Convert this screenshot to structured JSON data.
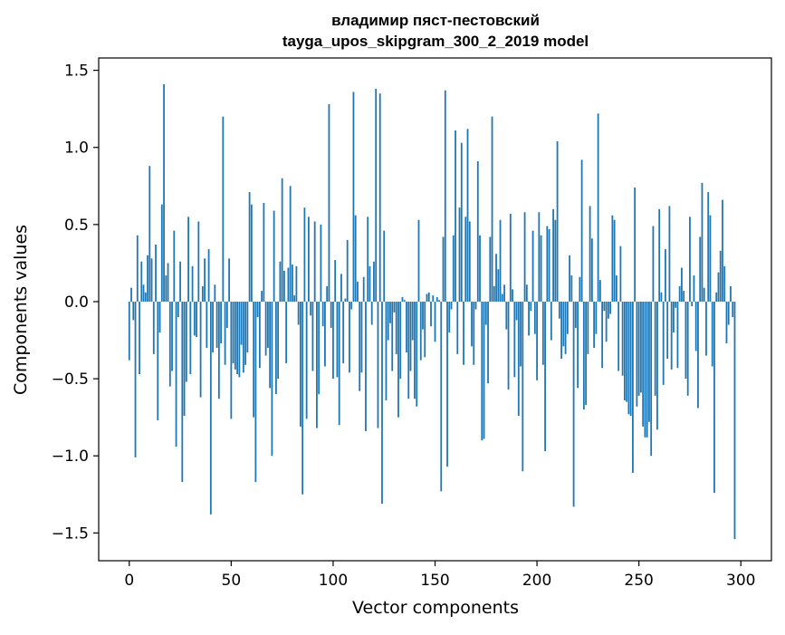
{
  "chart_data": {
    "type": "bar",
    "title": "владимир пяст-пестовский\ntayga_upos_skipgram_300_2_2019 model",
    "title_lines": [
      "владимир пяст-пестовский",
      "tayga_upos_skipgram_300_2_2019 model"
    ],
    "xlabel": "Vector components",
    "ylabel": "Components values",
    "xlim": [
      -15,
      315
    ],
    "ylim": [
      -1.68,
      1.58
    ],
    "x_ticks": [
      0,
      50,
      100,
      150,
      200,
      250,
      300
    ],
    "x_tick_labels": [
      "0",
      "50",
      "100",
      "150",
      "200",
      "250",
      "300"
    ],
    "y_ticks": [
      -1.5,
      -1.0,
      -0.5,
      0.0,
      0.5,
      1.0,
      1.5
    ],
    "y_tick_labels": [
      "−1.5",
      "−1.0",
      "−0.5",
      "0.0",
      "0.5",
      "1.0",
      "1.5"
    ],
    "bar_color": "#1f77b4",
    "grid": false,
    "series": [
      {
        "name": "components",
        "values": [
          -0.38,
          0.09,
          -0.12,
          -1.01,
          0.43,
          -0.47,
          0.26,
          0.11,
          0.06,
          0.3,
          0.88,
          0.28,
          -0.34,
          0.37,
          -0.77,
          -0.2,
          0.63,
          1.41,
          0.17,
          0.25,
          -0.55,
          -0.45,
          0.46,
          -0.94,
          -0.1,
          0.26,
          -1.17,
          -0.74,
          -0.52,
          0.55,
          -0.47,
          0.23,
          -0.22,
          -0.23,
          0.52,
          -0.62,
          0.1,
          0.28,
          -0.3,
          0.34,
          -1.38,
          -0.33,
          0.11,
          -0.3,
          -0.63,
          -0.27,
          1.2,
          -0.41,
          -0.17,
          0.28,
          -0.76,
          -0.4,
          -0.44,
          -0.47,
          -0.49,
          -0.28,
          -0.46,
          -0.41,
          -0.33,
          0.71,
          0.63,
          -0.75,
          -1.17,
          -0.1,
          -0.43,
          0.07,
          0.64,
          -0.35,
          -0.3,
          -0.56,
          -1.0,
          0.59,
          -0.6,
          -0.5,
          0.26,
          0.8,
          0.2,
          -0.4,
          0.22,
          0.75,
          0.24,
          0.04,
          0.23,
          -0.15,
          -0.81,
          -1.25,
          0.61,
          -0.76,
          0.55,
          -0.09,
          -0.45,
          0.52,
          -0.82,
          -0.6,
          0.5,
          -0.16,
          -0.42,
          0.1,
          1.28,
          -0.17,
          -0.5,
          0.27,
          -0.49,
          -0.8,
          0.18,
          -0.4,
          0.02,
          0.4,
          -0.46,
          -0.05,
          1.36,
          0.56,
          0.13,
          -0.58,
          -0.46,
          0.16,
          -0.84,
          0.55,
          0.23,
          -0.15,
          0.26,
          1.38,
          -0.82,
          1.35,
          -1.31,
          0.46,
          -0.64,
          -0.25,
          -0.14,
          -0.45,
          -0.07,
          -0.34,
          -0.75,
          -0.5,
          0.03,
          0.01,
          -0.33,
          -0.63,
          -0.45,
          -0.25,
          -0.63,
          -0.68,
          0.53,
          -0.38,
          -0.18,
          -0.36,
          0.05,
          0.06,
          -0.16,
          0.04,
          -0.26,
          0.03,
          0.01,
          -1.23,
          0.42,
          1.37,
          -1.07,
          -0.2,
          -0.05,
          0.43,
          1.11,
          -0.34,
          0.61,
          1.03,
          -0.41,
          0.55,
          1.12,
          0.52,
          -0.29,
          -0.41,
          -0.05,
          0.91,
          0.43,
          -0.9,
          -0.89,
          -0.15,
          -0.53,
          0.42,
          1.2,
          0.1,
          0.31,
          0.21,
          0.53,
          0.05,
          0.11,
          -0.18,
          -0.57,
          0.57,
          0.08,
          -0.49,
          -0.12,
          -0.74,
          -0.42,
          -1.1,
          0.58,
          0.11,
          -0.22,
          -0.06,
          0.46,
          -0.21,
          -0.51,
          0.58,
          0.43,
          -0.41,
          -0.97,
          0.49,
          0.47,
          -0.25,
          0.6,
          0.53,
          1.04,
          -0.11,
          -0.37,
          -0.29,
          -0.34,
          -0.21,
          0.3,
          0.17,
          -1.33,
          -0.17,
          -0.56,
          0.16,
          0.92,
          -0.7,
          -0.67,
          -0.34,
          0.62,
          0.41,
          -0.3,
          -0.21,
          1.22,
          0.14,
          -0.43,
          -0.06,
          -0.26,
          -0.11,
          -0.08,
          0.56,
          0.53,
          0.17,
          -0.45,
          0.36,
          -0.48,
          -0.64,
          -0.65,
          -0.73,
          -0.74,
          -1.11,
          0.74,
          -0.68,
          -0.61,
          -0.59,
          -0.81,
          -0.88,
          -0.88,
          -0.78,
          -1.0,
          0.49,
          -0.61,
          -0.83,
          0.6,
          0.06,
          -0.54,
          0.34,
          -0.37,
          0.62,
          -0.44,
          -0.2,
          -0.04,
          -0.43,
          0.1,
          0.22,
          0.07,
          -0.5,
          -0.61,
          0.55,
          -0.03,
          0.17,
          -0.32,
          -0.69,
          0.42,
          0.77,
          0.09,
          -0.35,
          0.71,
          0.56,
          -0.42,
          -1.24,
          0.06,
          0.19,
          0.33,
          0.66,
          0.23,
          -0.27,
          -0.15,
          0.1,
          -0.1,
          -1.54
        ]
      }
    ]
  }
}
